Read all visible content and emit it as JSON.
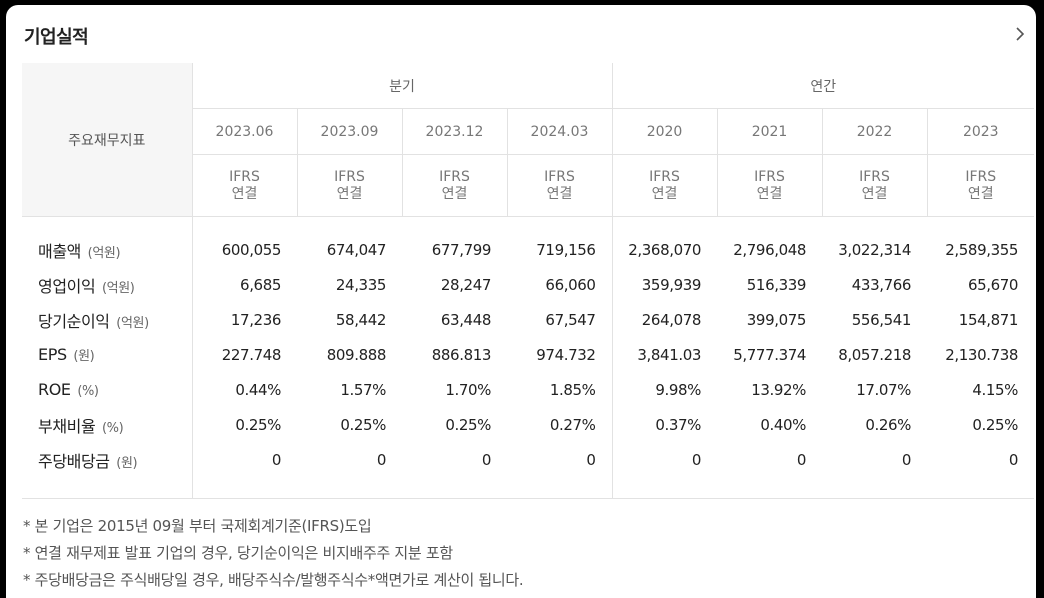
{
  "header": {
    "title": "기업실적"
  },
  "table": {
    "label_header": "주요재무지표",
    "groups": [
      "분기",
      "연간"
    ],
    "periods": [
      "2023.06",
      "2023.09",
      "2023.12",
      "2024.03",
      "2020",
      "2021",
      "2022",
      "2023"
    ],
    "basis_line1": "IFRS",
    "basis_line2": "연결",
    "rows": [
      {
        "label": "매출액",
        "unit": "(억원)",
        "values": [
          "600,055",
          "674,047",
          "677,799",
          "719,156",
          "2,368,070",
          "2,796,048",
          "3,022,314",
          "2,589,355"
        ]
      },
      {
        "label": "영업이익",
        "unit": "(억원)",
        "values": [
          "6,685",
          "24,335",
          "28,247",
          "66,060",
          "359,939",
          "516,339",
          "433,766",
          "65,670"
        ]
      },
      {
        "label": "당기순이익",
        "unit": "(억원)",
        "values": [
          "17,236",
          "58,442",
          "63,448",
          "67,547",
          "264,078",
          "399,075",
          "556,541",
          "154,871"
        ]
      },
      {
        "label": "EPS",
        "unit": "(원)",
        "values": [
          "227.748",
          "809.888",
          "886.813",
          "974.732",
          "3,841.03",
          "5,777.374",
          "8,057.218",
          "2,130.738"
        ]
      },
      {
        "label": "ROE",
        "unit": "(%)",
        "values": [
          "0.44%",
          "1.57%",
          "1.70%",
          "1.85%",
          "9.98%",
          "13.92%",
          "17.07%",
          "4.15%"
        ]
      },
      {
        "label": "부채비율",
        "unit": "(%)",
        "values": [
          "0.25%",
          "0.25%",
          "0.25%",
          "0.27%",
          "0.37%",
          "0.40%",
          "0.26%",
          "0.25%"
        ]
      },
      {
        "label": "주당배당금",
        "unit": "(원)",
        "values": [
          "0",
          "0",
          "0",
          "0",
          "0",
          "0",
          "0",
          "0"
        ]
      }
    ]
  },
  "notes": [
    "* 본 기업은 2015년 09월 부터 국제회계기준(IFRS)도입",
    "* 연결 재무제표 발표 기업의 경우, 당기순이익은 비지배주주 지분 포함",
    "* 주당배당금은 주식배당일 경우, 배당주식수/발행주식수*액면가로 계산이 됩니다."
  ],
  "icons": {
    "more": "chevron-right-icon"
  }
}
